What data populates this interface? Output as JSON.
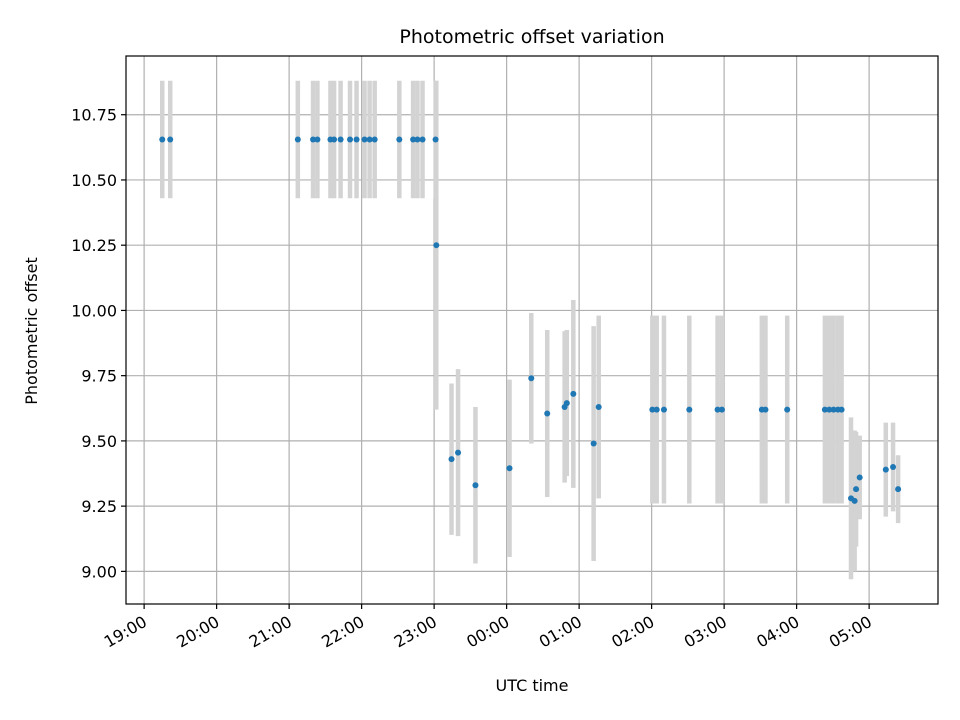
{
  "chart_data": {
    "type": "scatter",
    "title": "Photometric offset variation",
    "xlabel": "UTC time",
    "ylabel": "Photometric offset",
    "x_axis": "time (hours after 19:00 UTC)",
    "xlim": [
      -0.25,
      10.95
    ],
    "ylim": [
      8.875,
      10.975
    ],
    "grid": true,
    "xticks": [
      0,
      1,
      2,
      3,
      4,
      5,
      6,
      7,
      8,
      9,
      10
    ],
    "xtick_labels": [
      "19:00",
      "20:00",
      "21:00",
      "22:00",
      "23:00",
      "00:00",
      "01:00",
      "02:00",
      "03:00",
      "04:00",
      "05:00"
    ],
    "yticks": [
      9.0,
      9.25,
      9.5,
      9.75,
      10.0,
      10.25,
      10.5,
      10.75
    ],
    "ytick_labels": [
      "9.00",
      "9.25",
      "9.50",
      "9.75",
      "10.00",
      "10.25",
      "10.50",
      "10.75"
    ],
    "marker_color": "#1f77b4",
    "errorbar_color": "#d3d3d3",
    "series": [
      {
        "x": [
          0.25,
          0.36,
          2.12,
          2.33,
          2.39,
          2.57,
          2.62,
          2.71,
          2.84,
          2.93,
          3.04,
          3.11,
          3.18,
          3.52,
          3.71,
          3.77,
          3.84,
          4.02,
          4.03,
          4.24,
          4.33,
          4.57,
          5.04,
          5.34,
          5.56,
          5.8,
          5.83,
          5.92,
          6.2,
          6.27,
          7.01,
          7.07,
          7.17,
          7.52,
          7.91,
          7.97,
          8.52,
          8.57,
          8.87,
          9.39,
          9.45,
          9.51,
          9.57,
          9.62,
          9.75,
          9.8,
          9.82,
          9.87,
          10.23,
          10.33,
          10.4
        ],
        "y": [
          10.655,
          10.655,
          10.655,
          10.655,
          10.655,
          10.655,
          10.655,
          10.655,
          10.655,
          10.655,
          10.655,
          10.655,
          10.655,
          10.655,
          10.655,
          10.655,
          10.655,
          10.655,
          10.25,
          9.43,
          9.455,
          9.33,
          9.395,
          9.74,
          9.605,
          9.63,
          9.645,
          9.68,
          9.49,
          9.63,
          9.62,
          9.62,
          9.62,
          9.62,
          9.62,
          9.62,
          9.62,
          9.62,
          9.62,
          9.62,
          9.62,
          9.62,
          9.62,
          9.62,
          9.28,
          9.27,
          9.315,
          9.36,
          9.39,
          9.4,
          9.315
        ],
        "yerr": [
          0.225,
          0.225,
          0.225,
          0.225,
          0.225,
          0.225,
          0.225,
          0.225,
          0.225,
          0.225,
          0.225,
          0.225,
          0.225,
          0.225,
          0.225,
          0.225,
          0.225,
          0.225,
          0.63,
          0.29,
          0.32,
          0.3,
          0.34,
          0.25,
          0.32,
          0.29,
          0.28,
          0.36,
          0.45,
          0.35,
          0.36,
          0.36,
          0.36,
          0.36,
          0.36,
          0.36,
          0.36,
          0.36,
          0.36,
          0.36,
          0.36,
          0.36,
          0.36,
          0.36,
          0.31,
          0.27,
          0.22,
          0.16,
          0.18,
          0.17,
          0.13
        ]
      }
    ]
  }
}
